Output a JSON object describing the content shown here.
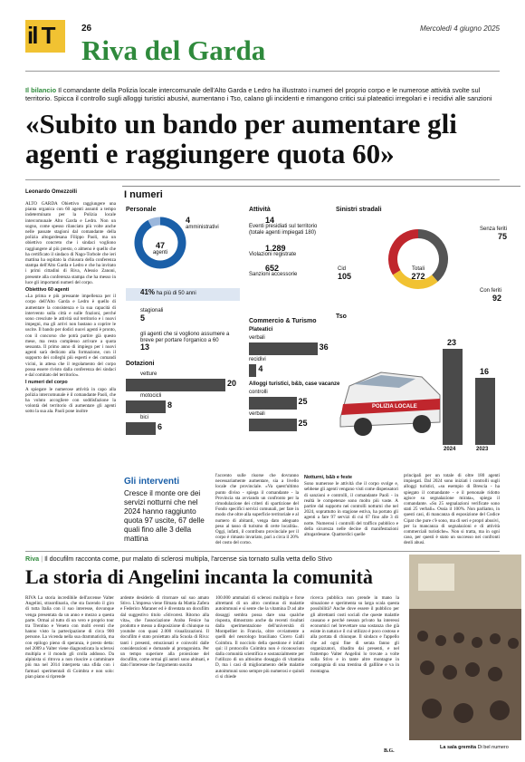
{
  "header": {
    "logo": "il T",
    "page_number": "26",
    "section": "Riva del Garda",
    "date": "Mercoledì 4 giugno 2025"
  },
  "lead": {
    "kicker": "Il bilancio",
    "text": "Il comandante della Polizia locale intercomunale dell'Alto Garda e Ledro ha illustrato i numeri del proprio corpo e le numerose attività svolte sul territorio. Spicca il controllo sugli alloggi turistici abusivi, aumentano i Tso, calano gli incidenti e rimangono critici sui plateatici irregolari e i recidivi alle sanzioni"
  },
  "headline": "«Subito un bando per aumentare gli agenti e raggiungere quota 60»",
  "byline": "Leonardo Omezzolli",
  "article": {
    "column1": [
      {
        "text": "ALTO GARDA Obiettivo raggiungere una pianta organica con 60 agenti assunti a tempo indeterminato per la Polizia locale intercomunale Alto Garda e Ledro. Non un sogno, come spesso rilanciato più volte anche nelle passate stagioni dal comandante della polizia altogardesana Filippo Paoli, ma un obiettivo concreto che i sindaci vogliono raggiungere al più presto, o almeno è quello che ha certificato il sindaco di Nago-Torbole che ieri mattina ha ospitato la chiusura della conferenza stampa dell'Alto Garda e Ledro e che ha invitato i primi cittadini di Riva, Alessio Zanoni, presente alla conferenza stampa che ha messo in luce gli importanti numeri del corpo."
      },
      {
        "subhead": "Obiettivo 60 agenti"
      },
      {
        "text": "«La prima e più pressante impellenza per il corpo dell'Alto Garda e Ledro è quello di aumentare la consistenza e la sua capacità di intervento sulla città e sulle frazioni, perché sono cresciute le attività sul territorio e i nuovi impegni, ma gli arrivi non bastano a coprire le uscite. Il bando per dodici nuovi agenti è pronto, con il concorso che potrà partire già questo mese, ma resta complesso arrivare a quota sessanta. Il primo anno di impiego per i nuovi agenti sarà dedicato alla formazione, con il supporto dei colleghi più esperti e dei comandi vicini, in attesa che il regolamento del corpo possa essere rivisto dalla conferenza dei sindaci e dal comitato del territorio»."
      },
      {
        "subhead": "I numeri del corpo"
      },
      {
        "text": "A spiegare le numerose attività in capo alla polizia intercomunale è il comandante Paoli, che ha voluto accogliere con soddisfazione la volontà del territorio di aumentare gli agenti sotto la sua ala. Paoli pone inoltre"
      }
    ],
    "column2": "l'accento sulle risorse che dovranno necessariamente aumentare, sia a livello locale che provinciale. «Va quest'ultimo punto diviso - spiega il comandante - la Provincia sta avviando un confronto per la rimodulazione dei criteri di spartizione del Fondo specifici servizi comunali, per fare in modo che oltre alla superficie territoriale e al numero di abitanti, venga dato adeguato peso al tasso di turismo di certe località». Oggi, infatti, il contributo provinciale per il corpo è rimasto invariato, pari a circa il 20% del costo del corpo.",
    "column3_subhead": "Notturni, b&b e feste",
    "column3": "Sono numerose le attività che il corpo svolge e, sebbene gli agenti vengano visti come dispensatori di sanzioni e controlli, il comandante Paoli - in realtà le competenze sono molto più vaste. A partire dal supporto nei controlli notturni che nel 2024, soprattutto in stagione estiva, ha portato gli agenti a fare 97 servizi di cui 67 fino alle 3 di notte. Numerosi i controlli del traffico pubblico e della sicurezza nelle decine di manifestazioni altogardesane. Quattordici quelle",
    "column4": "principali per un totale di oltre 180 agenti impiegati. Dal 2024 sono iniziati i controlli sugli alloggi turistici, «su esempio di Brescia - ha spiegato il comandante - e il personale ridotto agisce su segnalazione mirata», spiega il comandante. «Su 25 segnalazioni verificate sono stati 25 verbali». Ossia il 100%. Non parliamo, in questi casi, di mancanza di esposizione del Codice Cipat che pure c'è sono, ma di seri e propri abusivi, per la mancanza di segnalazioni e di attività commerciali turistiche». Non si tratta, ma in ogni caso, per questi è stato un successo nei confronti degli abusi."
  },
  "infographic": {
    "title": "I numeri",
    "personale": {
      "title": "Personale",
      "agenti": 47,
      "agenti_label": "agenti",
      "amministrativi": 4,
      "amministrativi_label": "amministrativi",
      "over50": "41%",
      "over50_label": "ha più di 50 anni",
      "stagionali_label": "stagionali",
      "stagionali": 5,
      "assumere_label": "gli agenti che si vogliono assumere a breve per portare l'organico a 60",
      "assumere": 13
    },
    "dotazioni": {
      "title": "Dotazioni",
      "items": [
        {
          "name": "vetture",
          "value": 20
        },
        {
          "name": "motocicli",
          "value": 8
        },
        {
          "name": "bici",
          "value": 6
        }
      ]
    },
    "attivita": {
      "title": "Attività",
      "eventi": 14,
      "eventi_label": "Eventi presidiati sul territorio (totale agenti impiegati 180)",
      "violazioni": "1.289",
      "violazioni_label": "Violazioni registrate",
      "sanzioni": 652,
      "sanzioni_label": "Sanzioni accessorie"
    },
    "commercio": {
      "title": "Commercio & Turismo",
      "plateatici_title": "Plateatici",
      "plateatici": [
        {
          "name": "verbali",
          "value": 36
        },
        {
          "name": "recidivi",
          "value": 4
        }
      ],
      "alloggi_title": "Alloggi turistici, b&b, case vacanze",
      "alloggi": [
        {
          "name": "controlli",
          "value": 25
        },
        {
          "name": "verbali",
          "value": 25
        }
      ]
    },
    "sinistri": {
      "title": "Sinistri stradali",
      "cid_label": "Cid",
      "cid": 105,
      "totali_label": "Totali",
      "totali": 272,
      "senza_feriti_label": "Senza feriti",
      "senza_feriti": 75,
      "con_feriti_label": "Con feriti",
      "con_feriti": 92
    },
    "tso": {
      "title": "Tso",
      "years": [
        "2024",
        "2023"
      ],
      "values": [
        23,
        16
      ]
    },
    "car_text": "POLIZIA LOCALE"
  },
  "sidebar": {
    "title": "Gli interventi",
    "text": "Cresce il monte ore dei servizi notturni che nel 2024 hanno raggiunto quota 97 uscite, 67 delle quali fino alle 3 della mattina"
  },
  "second_article": {
    "kicker": "Riva",
    "summary": "Il docufilm racconta come, pur malato di sclerosi multipla, l'arcense sia tornato sulla vetta dello Stivo",
    "headline": "La storia di Angelini incanta la comunità",
    "columns": [
      "RIVA La storia incredibile dell'arcense Valter Angelini, straordinaria, che sta facendo il giro di tutta Italia con il suo interesse, dovunque venga presentata da un anno e mezzo a questa parte. Ormai al tutto di un vero e proprio tour tra Trentino e Veneto con molti eventi che hanno visto la partecipazione di circa 900 persone. La vicenda nella sua drammaticità, ma con epilogo pieno di speranza, è presto detta: nel 2009 a Valter viene diagnosticata la sclerosi multipla e il mondo gli crolla addosso. Da alpinista si ritrova a non riuscire a camminare più ma nel 2014 interpreta una sfida con i farmaci sperimentali di Coimbra e non solo: pian piano si riprende",
      "ardente desiderio di ritornare sul suo amato Stivo. L'impresa viene filmata da Mattia Zafera e Federico Maraner ed è diventata un docufilm dal suggestivo titolo «Stivorest. Ritorno alla vita», che l'associazione Araba Fenice ha prodotto e messo a disposizione di chiunque su youtube con quasi 2.000 visualizzazioni. Il docufilm è stato proiettato alla Scuola di Riva: tanti i presenti, emozionati e coinvolti dalle considerazioni e domande al protagonista. Per un tempo superiore alla proiezione del docufilm, come ormai gli autori sono abituati, e dato l'interesse che l'argomento suscita",
      "100.000 ammalati di sclerosi multipla e forse altrettanti di un altro continuo di malattie autoimmuni e si sente che la vitamina D ad alte dosaggi sembra possa dare una qualche risposta, dimostrato anche da recenti risultati dalla sperimentazione dell'università di Montpellier in Francia, oltre ovviamente a quelli del neurologo brasiliano Cicero Galli Coimbra. Il nocciolo della questione è infatti qui: il protocollo Coimbra non è riconosciuto dalla comunità scientifica e sostanzialmente per l'utilizzo di un altissimo dosaggio di vitamina D, ma i casi di miglioramento delle malattie autoimmuni sono sempre più numerosi e quindi ci si chiede",
      "ricerca pubblica non prende in mano la situazione e sperimenta su larga scala questa possibilità? Anche dove essere il pubblico per gli altrettanti costi sociali che queste malattie causano e perché nessun privato ha interessi economici nel brevettare una sostanza che già esiste in natura e il cui utilizzo è poco costoso e alla portata di chiunque. Il sindaco e l'appello che ad ogni fine di serata fanno gli organizzatori, ribadito dai presenti, e nel frattempo Valter Angelini lo trovate a volte sulla Stivo e in tante altre montagne in compagnia di una trentina di gallline e va in montagna."
    ],
    "signature": "B.G.",
    "caption_title": "La sala gremita",
    "caption": "Di bel numero"
  }
}
